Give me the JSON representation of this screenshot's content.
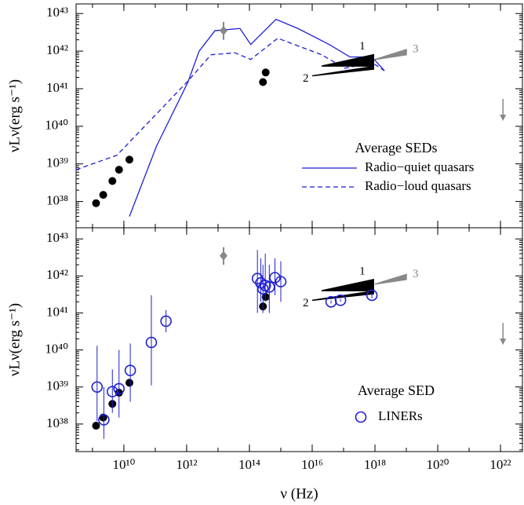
{
  "chart_data": [
    {
      "type": "line",
      "scale": "log",
      "ylabel": "νLν(erg s⁻¹)",
      "xlim": [
        300000000.0,
        5e+22
      ],
      "ylim": [
        2e+37,
        1.8e+43
      ],
      "yticks": [
        {
          "value": 1e+38,
          "label": "10³⁸"
        },
        {
          "value": 1e+39,
          "label": "10³⁹"
        },
        {
          "value": 1e+40,
          "label": "10⁴⁰"
        },
        {
          "value": 1e+41,
          "label": "10⁴¹"
        },
        {
          "value": 1e+42,
          "label": "10⁴²"
        },
        {
          "value": 1e+43,
          "label": "10⁴³"
        }
      ],
      "legend_title": "Average SEDs",
      "series": [
        {
          "name": "Radio−quiet quasars",
          "style": "solid",
          "color": "#1f1fd0",
          "x": [
            15000000000.0,
            110000000000.0,
            1100000000000.0,
            2500000000000.0,
            8000000000000.0,
            50000000000000.0,
            110000000000000.0,
            700000000000000.0,
            3500000000000000.0,
            3.5e+16,
            1.6e+17,
            8e+17,
            2e+18
          ],
          "values": [
            4e+37,
            3e+39,
            1.5e+41,
            1e+42,
            3.5e+42,
            4e+42,
            1.5e+42,
            7e+42,
            4e+42,
            1.5e+42,
            7e+41,
            7e+41,
            3e+41
          ]
        },
        {
          "name": "Radio−loud quasars",
          "style": "dashed",
          "color": "#1f1fd0",
          "x": [
            300000000.0,
            6000000000.0,
            1100000000000.0,
            6000000000000.0,
            35000000000000.0,
            110000000000000.0,
            800000000000000.0,
            2e+16,
            1.1e+17,
            8e+17,
            2e+18
          ],
          "values": [
            7e+38,
            1.7e+39,
            1.6e+41,
            8e+41,
            9e+41,
            6e+41,
            2.2e+42,
            8e+41,
            3.5e+41,
            5e+41,
            3e+41
          ]
        },
        {
          "style": "dot",
          "color": "#000000",
          "x": [
            1300000000.0,
            2200000000.0,
            4300000000.0,
            7000000000.0,
            15000000000.0,
            270000000000000.0,
            330000000000000.0
          ],
          "values": [
            9e+37,
            1.5e+38,
            3.5e+38,
            7e+38,
            1.3e+39,
            1.5e+41,
            2.7e+41
          ]
        },
        {
          "style": "diamond",
          "color": "#888888",
          "x": [
            15000000000000.0
          ],
          "values": [
            3.5e+42
          ],
          "err_low": [
            2e+42
          ],
          "err_high": [
            6e+42
          ]
        },
        {
          "style": "arrow",
          "color": "#888888",
          "x": [
            1.2e+22
          ],
          "values": [
            3e+40
          ]
        },
        {
          "name": "1",
          "style": "wedge",
          "color": "#000000",
          "x": [
            2e+16,
            9e+17
          ],
          "values": [
            4e+41,
            4e+41
          ],
          "values_high": [
            4e+41,
            8e+41
          ]
        },
        {
          "name": "2",
          "style": "wedge",
          "color": "#000000",
          "x": [
            1e+16,
            9e+17
          ],
          "values": [
            2.2e+41,
            3.3e+41
          ],
          "values_high": [
            2.2e+41,
            3.9e+41
          ]
        },
        {
          "name": "3",
          "style": "wedge",
          "color": "#888888",
          "x": [
            1e+18,
            1e+19
          ],
          "values": [
            6e+41,
            8e+41
          ],
          "values_high": [
            6e+41,
            1.1e+42
          ]
        }
      ]
    },
    {
      "type": "scatter",
      "scale": "log",
      "ylabel": "νLν(erg s⁻¹)",
      "xlabel": "ν (Hz)",
      "xlim": [
        300000000.0,
        5e+22
      ],
      "ylim": [
        1.8e+37,
        2e+43
      ],
      "xticks": [
        {
          "value": 10000000000.0,
          "label": "10¹⁰"
        },
        {
          "value": 1000000000000.0,
          "label": "10¹²"
        },
        {
          "value": 100000000000000.0,
          "label": "10¹⁴"
        },
        {
          "value": 1e+16,
          "label": "10¹⁶"
        },
        {
          "value": 1e+18,
          "label": "10¹⁸"
        },
        {
          "value": 1e+20,
          "label": "10²⁰"
        },
        {
          "value": 1e+22,
          "label": "10²²"
        }
      ],
      "yticks": [
        {
          "value": 1e+38,
          "label": "10³⁸"
        },
        {
          "value": 1e+39,
          "label": "10³⁹"
        },
        {
          "value": 1e+40,
          "label": "10⁴⁰"
        },
        {
          "value": 1e+41,
          "label": "10⁴¹"
        },
        {
          "value": 1e+42,
          "label": "10⁴²"
        },
        {
          "value": 1e+43,
          "label": "10⁴³"
        }
      ],
      "legend_title": "Average SED",
      "series": [
        {
          "style": "dot",
          "color": "#000000",
          "x": [
            1300000000.0,
            2200000000.0,
            4300000000.0,
            7000000000.0,
            15000000000.0,
            270000000000000.0,
            330000000000000.0
          ],
          "values": [
            9e+37,
            1.5e+38,
            3.5e+38,
            7e+38,
            1.3e+39,
            1.5e+41,
            2.7e+41
          ]
        },
        {
          "style": "diamond",
          "color": "#888888",
          "x": [
            15000000000000.0
          ],
          "values": [
            3.5e+42
          ],
          "err_low": [
            2e+42
          ],
          "err_high": [
            6e+42
          ]
        },
        {
          "style": "arrow",
          "color": "#888888",
          "x": [
            1.2e+22
          ],
          "values": [
            3e+40
          ]
        },
        {
          "name": "1",
          "style": "wedge",
          "color": "#000000",
          "x": [
            2e+16,
            9e+17
          ],
          "values": [
            4e+41,
            4e+41
          ],
          "values_high": [
            4e+41,
            8e+41
          ]
        },
        {
          "name": "2",
          "style": "wedge",
          "color": "#000000",
          "x": [
            1e+16,
            9e+17
          ],
          "values": [
            2.2e+41,
            3.3e+41
          ],
          "values_high": [
            2.2e+41,
            3.9e+41
          ]
        },
        {
          "name": "3",
          "style": "wedge",
          "color": "#888888",
          "x": [
            1e+18,
            1e+19
          ],
          "values": [
            6e+41,
            8e+41
          ],
          "values_high": [
            6e+41,
            1.1e+42
          ]
        },
        {
          "name": "LINERs",
          "style": "circle",
          "color": "#1f1fd0",
          "x": [
            1400000000.0,
            2300000000.0,
            4300000000.0,
            7000000000.0,
            16000000000.0,
            75000000000.0,
            220000000000.0,
            180000000000000.0,
            230000000000000.0,
            270000000000000.0,
            320000000000000.0,
            430000000000000.0,
            650000000000000.0,
            1000000000000000.0,
            4e+16,
            8e+16,
            8e+17
          ],
          "values": [
            1e+39,
            1.3e+38,
            7.5e+38,
            9e+38,
            2.8e+39,
            1.6e+40,
            6e+40,
            8.5e+41,
            6.5e+41,
            4.5e+41,
            5.5e+41,
            5e+41,
            9e+41,
            7e+41,
            2e+41,
            2.2e+41,
            3e+41
          ],
          "err_low": [
            1.2e+38,
            4e+37,
            2e+38,
            1.5e+38,
            4e+38,
            1.1e+39,
            3e+40,
            1e+41,
            2e+41,
            1e+41,
            2e+41,
            1e+41,
            3e+41,
            2e+41,
            1.8e+41,
            2e+41,
            2.5e+41
          ],
          "err_high": [
            1.3e+40,
            1e+39,
            3e+39,
            1e+40,
            1.5e+40,
            3e+41,
            1.2e+41,
            5e+42,
            3e+42,
            2e+42,
            4e+42,
            2e+42,
            3e+42,
            2.5e+42,
            2.2e+41,
            2.4e+41,
            3.5e+41
          ]
        }
      ]
    }
  ]
}
